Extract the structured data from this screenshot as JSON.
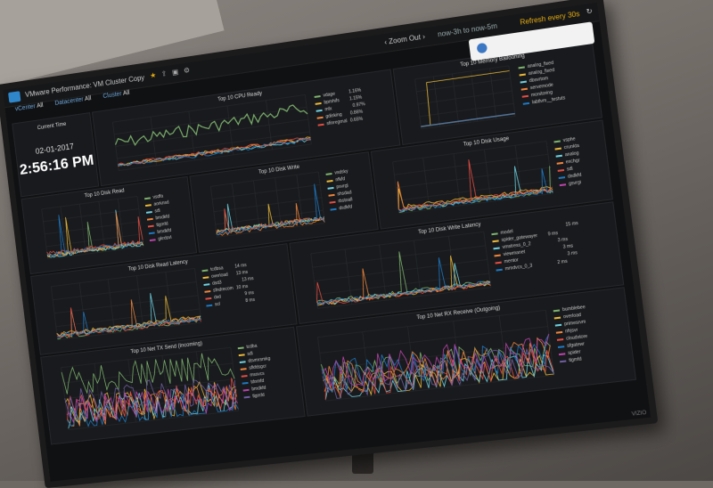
{
  "window_title": "VMware Performance: VM Cluster Copy",
  "toolbar": {
    "zoom_out": "Zoom Out",
    "time_range": "now-3h to now-5m",
    "refresh": "Refresh every 30s"
  },
  "variables": [
    {
      "label": "vCenter",
      "value": "All"
    },
    {
      "label": "Datacenter",
      "value": "All"
    },
    {
      "label": "Cluster",
      "value": "All"
    }
  ],
  "clock": {
    "label": "Current Time",
    "date": "02-01-2017",
    "time": "2:56:16 PM"
  },
  "panels": {
    "cpu_ready": {
      "title": "Top 10 CPU Ready",
      "legend": [
        "vdage",
        "bpmhifs",
        "mfx",
        "gdisking",
        "sfinregrnal"
      ],
      "values": [
        "1.16%",
        "1.15%",
        "0.97%",
        "0.86%",
        "0.65%"
      ]
    },
    "memory_ballooning": {
      "title": "Top 10 Memory Ballooning",
      "legend": [
        "analog_fixed",
        "analog_fixed",
        "dbsvrtom",
        "servernode",
        "monitoring",
        "labtlvm__testuts"
      ]
    },
    "disk_usage": {
      "title": "Top 10 Disk Usage",
      "legend": [
        "vsphe",
        "crunkta",
        "analog",
        "exchgr",
        "sdl",
        "dsdkfd",
        "gsvrgi"
      ]
    },
    "disk_write": {
      "title": "Top 10 Disk Write",
      "legend": [
        "vsdsky",
        "nfkfd",
        "psvrgl",
        "shsdad",
        "rbstoall",
        "dsdkfd"
      ]
    },
    "disk_read": {
      "title": "Top 10 Disk Read",
      "legend": [
        "vsdfa",
        "aorknsd",
        "sdl",
        "bmdkfd",
        "tlgmfd",
        "bmdkfd",
        "gkrdsvl"
      ]
    },
    "disk_write_latency": {
      "title": "Top 10 Disk Write Latency",
      "legend": [
        "model",
        "spider_gatewayer",
        "vmstress_0_2",
        "viewmanet",
        "mentor",
        "mmdvcs_0_3"
      ],
      "values": [
        "15 ms",
        "9 ms",
        "3 ms",
        "3 ms",
        "3 ms",
        "2 ms"
      ]
    },
    "disk_read_latency": {
      "title": "Top 10 Disk Read Latency",
      "legend": [
        "tcdbsa",
        "overload",
        "dsd3",
        "sfndrecom",
        "dsd",
        "scl"
      ],
      "values": [
        "14 ms",
        "13 ms",
        "13 ms",
        "10 ms",
        "9 ms",
        "8 ms"
      ]
    },
    "net_tx": {
      "title": "Top 10 Net TX Send (Incoming)",
      "legend": [
        "tcdba",
        "sdl",
        "dsvmrsmkg",
        "sfkfdsgcr",
        "mssvcs",
        "tdnmfd",
        "bmdkfd",
        "tlgmfd"
      ]
    },
    "net_rx": {
      "title": "Top 10 Net RX Receive (Outgoing)",
      "legend": [
        "bumblebee",
        "overload",
        "primesrvm",
        "nfrjsvr",
        "cloudstore",
        "sfgatewr",
        "spider",
        "tlgmfd"
      ]
    }
  },
  "brand": "VIZIO",
  "colors": [
    "#7eb26d",
    "#eab839",
    "#6ed0e0",
    "#ef843c",
    "#e24d42",
    "#1f78c1",
    "#ba43a9",
    "#705da0",
    "#508642",
    "#cca300"
  ],
  "icons": [
    "star-icon",
    "share-icon",
    "save-icon",
    "settings-icon",
    "refresh-icon",
    "dashboard-logo-icon"
  ]
}
